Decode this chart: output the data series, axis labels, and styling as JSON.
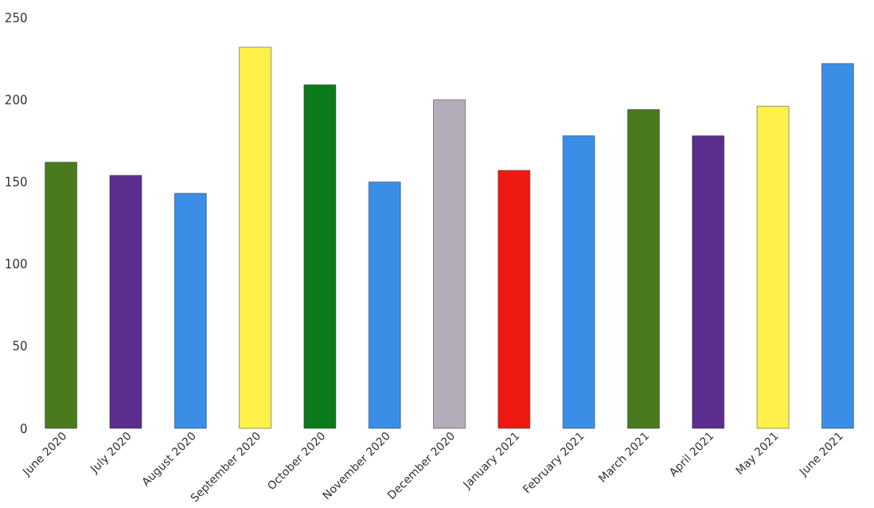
{
  "chart_data": {
    "type": "bar",
    "categories": [
      "June 2020",
      "July 2020",
      "August 2020",
      "September 2020",
      "October 2020",
      "November 2020",
      "December 2020",
      "January 2021",
      "February 2021",
      "March 2021",
      "April 2021",
      "May 2021",
      "June 2021"
    ],
    "values": [
      162,
      154,
      143,
      232,
      209,
      150,
      200,
      157,
      178,
      194,
      178,
      196,
      222
    ],
    "colors": [
      "#4a7a1e",
      "#5a2d8f",
      "#3a8ee6",
      "#fff14a",
      "#0b7a1a",
      "#3a8ee6",
      "#b3abb8",
      "#ee1a12",
      "#3a8ee6",
      "#4a7a1e",
      "#5a2d8f",
      "#fff14a",
      "#3a8ee6"
    ],
    "ylim": [
      0,
      250
    ],
    "yticks": [
      0,
      50,
      100,
      150,
      200,
      250
    ],
    "grid": false
  }
}
